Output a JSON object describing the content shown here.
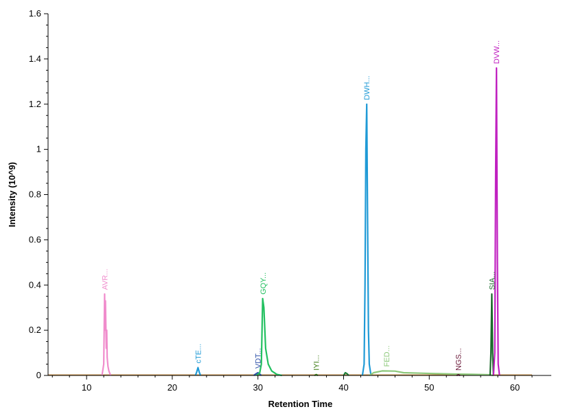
{
  "chart_data": {
    "type": "line",
    "title": "",
    "xlabel": "Retention Time",
    "ylabel": "Intensity (10^9)",
    "xlim": [
      5.5,
      62
    ],
    "ylim": [
      0,
      1.6
    ],
    "x_ticks": [
      {
        "value": 10,
        "label": "10"
      },
      {
        "value": 20,
        "label": "20"
      },
      {
        "value": 30,
        "label": "30"
      },
      {
        "value": 40,
        "label": "40"
      },
      {
        "value": 50,
        "label": "50"
      },
      {
        "value": 60,
        "label": "60"
      }
    ],
    "y_ticks": [
      {
        "value": 0,
        "label": "0"
      },
      {
        "value": 0.2,
        "label": "0.2"
      },
      {
        "value": 0.4,
        "label": "0.4"
      },
      {
        "value": 0.6,
        "label": "0.6"
      },
      {
        "value": 0.8,
        "label": "0.8"
      },
      {
        "value": 1.0,
        "label": "1"
      },
      {
        "value": 1.2,
        "label": "1.2"
      },
      {
        "value": 1.4,
        "label": "1.4"
      },
      {
        "value": 1.6,
        "label": "1.6"
      }
    ],
    "series": [
      {
        "label": "AVR...",
        "color": "#f08ccc",
        "points": [
          [
            11.8,
            0
          ],
          [
            12.0,
            0.05
          ],
          [
            12.1,
            0.36
          ],
          [
            12.15,
            0.2
          ],
          [
            12.2,
            0.33
          ],
          [
            12.3,
            0.12
          ],
          [
            12.35,
            0.2
          ],
          [
            12.4,
            0.08
          ],
          [
            12.5,
            0.04
          ],
          [
            12.6,
            0.02
          ],
          [
            12.8,
            0
          ]
        ],
        "label_at": [
          12.1,
          0.36
        ]
      },
      {
        "label": "cTE...",
        "color": "#1f9ad6",
        "points": [
          [
            22.7,
            0
          ],
          [
            22.85,
            0.015
          ],
          [
            23.0,
            0.035
          ],
          [
            23.15,
            0.015
          ],
          [
            23.3,
            0
          ]
        ],
        "label_at": [
          23.0,
          0.035
        ]
      },
      {
        "label": "VDT...",
        "color": "#3355aa",
        "points": [
          [
            29.5,
            0
          ],
          [
            29.8,
            0.008
          ],
          [
            30.0,
            0.012
          ],
          [
            30.2,
            0.006
          ],
          [
            30.4,
            0
          ]
        ],
        "label_at": [
          30.0,
          0.012
        ]
      },
      {
        "label": "GQY...",
        "color": "#22c060",
        "points": [
          [
            29.8,
            0
          ],
          [
            30.2,
            0.01
          ],
          [
            30.4,
            0.05
          ],
          [
            30.55,
            0.34
          ],
          [
            30.7,
            0.3
          ],
          [
            30.9,
            0.12
          ],
          [
            31.2,
            0.05
          ],
          [
            31.6,
            0.02
          ],
          [
            32.2,
            0.005
          ],
          [
            32.8,
            0
          ]
        ],
        "label_at": [
          30.6,
          0.34
        ]
      },
      {
        "label": "IYI...",
        "color": "#3a7a10",
        "points": [
          [
            36.6,
            0
          ],
          [
            36.8,
            0.004
          ],
          [
            37.0,
            0
          ]
        ],
        "label_at": [
          36.8,
          0.004
        ]
      },
      {
        "label": "",
        "color": "#1f7f3a",
        "points": [
          [
            40.0,
            0
          ],
          [
            40.2,
            0.012
          ],
          [
            40.4,
            0.008
          ],
          [
            40.6,
            0
          ]
        ]
      },
      {
        "label": "DWH...",
        "color": "#1f9ad6",
        "points": [
          [
            42.2,
            0
          ],
          [
            42.4,
            0.05
          ],
          [
            42.5,
            0.4
          ],
          [
            42.6,
            1.0
          ],
          [
            42.7,
            1.2
          ],
          [
            42.8,
            0.7
          ],
          [
            42.9,
            0.2
          ],
          [
            43.0,
            0.05
          ],
          [
            43.2,
            0
          ]
        ],
        "label_at": [
          42.7,
          1.2
        ]
      },
      {
        "label": "FED...",
        "color": "#8cc87a",
        "points": [
          [
            43.0,
            0
          ],
          [
            43.5,
            0.012
          ],
          [
            44.5,
            0.02
          ],
          [
            46.0,
            0.019
          ],
          [
            47.0,
            0.012
          ],
          [
            49.0,
            0.01
          ],
          [
            51.0,
            0.008
          ],
          [
            53.0,
            0.006
          ],
          [
            55.0,
            0.005
          ],
          [
            57.0,
            0.003
          ],
          [
            57.5,
            0
          ]
        ],
        "label_at": [
          45.0,
          0.02
        ]
      },
      {
        "label": "NGS...",
        "color": "#6b1a3a",
        "points": [
          [
            53.2,
            0
          ],
          [
            53.4,
            0.003
          ],
          [
            53.6,
            0
          ]
        ],
        "label_at": [
          53.4,
          0.003
        ]
      },
      {
        "label": "SIA...",
        "color": "#1a6a2a",
        "points": [
          [
            57.1,
            0
          ],
          [
            57.2,
            0.1
          ],
          [
            57.3,
            0.36
          ],
          [
            57.4,
            0.1
          ],
          [
            57.5,
            0
          ]
        ],
        "label_at": [
          57.3,
          0.36
        ]
      },
      {
        "label": "DVW...",
        "color": "#c020c0",
        "points": [
          [
            57.5,
            0
          ],
          [
            57.65,
            0.1
          ],
          [
            57.75,
            0.9
          ],
          [
            57.85,
            1.36
          ],
          [
            57.95,
            0.5
          ],
          [
            58.05,
            0.05
          ],
          [
            58.2,
            0
          ]
        ],
        "label_at": [
          57.85,
          1.36
        ]
      }
    ],
    "grid": false,
    "legend": "none"
  }
}
